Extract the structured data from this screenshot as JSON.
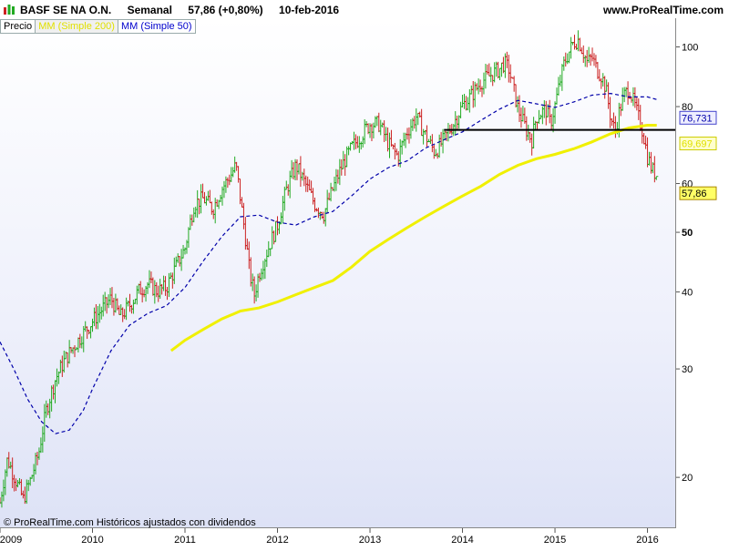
{
  "header": {
    "title": "BASF SE NA O.N.",
    "period": "Semanal",
    "quote": "57,86 (+0,80%)",
    "date": "10-feb-2016",
    "site": "www.ProRealTime.com"
  },
  "legend": {
    "price": "Precio",
    "ma200": "MM (Simple 200)",
    "ma50": "MM (Simple 50)"
  },
  "footer": "© ProRealTime.com  Históricos ajustados con dividendos",
  "colors": {
    "up": "#22aa22",
    "down": "#cc2222",
    "ma50": "#0000aa",
    "ma200": "#f0f000",
    "resistance": "#000000",
    "ma50_badge": "#eeeeff",
    "ma200_badge": "#ffffcc",
    "last_badge": "#ffff66"
  },
  "chart_data": {
    "type": "line",
    "scale": "log",
    "ylim": [
      15.5,
      104
    ],
    "xlim": [
      2009.0,
      2016.3
    ],
    "yticks": [
      {
        "value": 100,
        "label": "100"
      },
      {
        "value": 80,
        "label": "80"
      },
      {
        "value": 60,
        "label": "60"
      },
      {
        "value": 50,
        "label": "50"
      },
      {
        "value": 40,
        "label": "40"
      },
      {
        "value": 30,
        "label": "30"
      },
      {
        "value": 20,
        "label": "20"
      }
    ],
    "xticks": [
      {
        "value": 2009,
        "label": "2009"
      },
      {
        "value": 2010,
        "label": "2010"
      },
      {
        "value": 2011,
        "label": "2011"
      },
      {
        "value": 2012,
        "label": "2012"
      },
      {
        "value": 2013,
        "label": "2013"
      },
      {
        "value": 2014,
        "label": "2014"
      },
      {
        "value": 2015,
        "label": "2015"
      },
      {
        "value": 2016,
        "label": "2016"
      }
    ],
    "price_path": [
      [
        2009.0,
        17
      ],
      [
        2009.08,
        20
      ],
      [
        2009.17,
        18.5
      ],
      [
        2009.25,
        17.2
      ],
      [
        2009.33,
        18.5
      ],
      [
        2009.42,
        20.5
      ],
      [
        2009.5,
        24
      ],
      [
        2009.6,
        27
      ],
      [
        2009.7,
        29
      ],
      [
        2009.8,
        30.5
      ],
      [
        2009.9,
        32
      ],
      [
        2010.0,
        33.5
      ],
      [
        2010.1,
        35
      ],
      [
        2010.2,
        36.5
      ],
      [
        2010.3,
        34
      ],
      [
        2010.4,
        35.5
      ],
      [
        2010.5,
        37.5
      ],
      [
        2010.6,
        38.5
      ],
      [
        2010.7,
        37.5
      ],
      [
        2010.8,
        38
      ],
      [
        2010.9,
        41
      ],
      [
        2011.0,
        44
      ],
      [
        2011.1,
        52
      ],
      [
        2011.2,
        53
      ],
      [
        2011.3,
        51
      ],
      [
        2011.4,
        55
      ],
      [
        2011.5,
        58
      ],
      [
        2011.55,
        60
      ],
      [
        2011.62,
        50
      ],
      [
        2011.7,
        40
      ],
      [
        2011.75,
        37
      ],
      [
        2011.8,
        40
      ],
      [
        2011.9,
        44
      ],
      [
        2012.0,
        48
      ],
      [
        2012.1,
        55
      ],
      [
        2012.2,
        60
      ],
      [
        2012.3,
        56
      ],
      [
        2012.4,
        52
      ],
      [
        2012.5,
        50
      ],
      [
        2012.6,
        55
      ],
      [
        2012.7,
        60
      ],
      [
        2012.8,
        64
      ],
      [
        2012.9,
        67
      ],
      [
        2013.0,
        70
      ],
      [
        2013.1,
        70
      ],
      [
        2013.2,
        65
      ],
      [
        2013.3,
        62
      ],
      [
        2013.4,
        68
      ],
      [
        2013.5,
        72
      ],
      [
        2013.6,
        67
      ],
      [
        2013.7,
        63
      ],
      [
        2013.8,
        66
      ],
      [
        2013.9,
        70
      ],
      [
        2014.0,
        75
      ],
      [
        2014.1,
        78
      ],
      [
        2014.2,
        82
      ],
      [
        2014.3,
        84
      ],
      [
        2014.4,
        86
      ],
      [
        2014.45,
        88
      ],
      [
        2014.5,
        86
      ],
      [
        2014.55,
        80
      ],
      [
        2014.6,
        74
      ],
      [
        2014.7,
        68
      ],
      [
        2014.75,
        66
      ],
      [
        2014.8,
        72
      ],
      [
        2014.9,
        74
      ],
      [
        2014.95,
        70
      ],
      [
        2015.0,
        75
      ],
      [
        2015.1,
        88
      ],
      [
        2015.2,
        95
      ],
      [
        2015.25,
        96
      ],
      [
        2015.3,
        92
      ],
      [
        2015.35,
        88
      ],
      [
        2015.4,
        90
      ],
      [
        2015.45,
        86
      ],
      [
        2015.5,
        84
      ],
      [
        2015.55,
        80
      ],
      [
        2015.6,
        72
      ],
      [
        2015.65,
        68
      ],
      [
        2015.7,
        74
      ],
      [
        2015.75,
        78
      ],
      [
        2015.8,
        80
      ],
      [
        2015.85,
        76
      ],
      [
        2015.9,
        72
      ],
      [
        2015.95,
        68
      ],
      [
        2016.0,
        62
      ],
      [
        2016.05,
        59
      ],
      [
        2016.1,
        57.86
      ]
    ],
    "series": [
      {
        "name": "MM (Simple 200)",
        "points": [
          [
            2010.85,
            30
          ],
          [
            2011.0,
            31.2
          ],
          [
            2011.2,
            32.5
          ],
          [
            2011.4,
            33.8
          ],
          [
            2011.6,
            34.8
          ],
          [
            2011.8,
            35.2
          ],
          [
            2012.0,
            36.0
          ],
          [
            2012.2,
            37.0
          ],
          [
            2012.4,
            38.0
          ],
          [
            2012.6,
            39.0
          ],
          [
            2012.8,
            41.0
          ],
          [
            2013.0,
            43.5
          ],
          [
            2013.2,
            45.5
          ],
          [
            2013.4,
            47.5
          ],
          [
            2013.6,
            49.5
          ],
          [
            2013.8,
            51.5
          ],
          [
            2014.0,
            53.5
          ],
          [
            2014.2,
            55.5
          ],
          [
            2014.4,
            58.0
          ],
          [
            2014.6,
            60.0
          ],
          [
            2014.8,
            61.5
          ],
          [
            2015.0,
            62.5
          ],
          [
            2015.2,
            63.8
          ],
          [
            2015.4,
            65.5
          ],
          [
            2015.6,
            67.5
          ],
          [
            2015.8,
            69.0
          ],
          [
            2016.0,
            69.7
          ],
          [
            2016.1,
            69.7
          ]
        ]
      },
      {
        "name": "MM (Simple 50)",
        "points": [
          [
            2009.0,
            31
          ],
          [
            2009.15,
            28
          ],
          [
            2009.3,
            25
          ],
          [
            2009.45,
            23
          ],
          [
            2009.6,
            22
          ],
          [
            2009.75,
            22.3
          ],
          [
            2009.9,
            24
          ],
          [
            2010.0,
            26
          ],
          [
            2010.2,
            30
          ],
          [
            2010.4,
            33
          ],
          [
            2010.6,
            34.5
          ],
          [
            2010.8,
            35.5
          ],
          [
            2011.0,
            38
          ],
          [
            2011.2,
            42
          ],
          [
            2011.4,
            46
          ],
          [
            2011.6,
            49.5
          ],
          [
            2011.8,
            49.8
          ],
          [
            2012.0,
            48.5
          ],
          [
            2012.2,
            48
          ],
          [
            2012.4,
            49.5
          ],
          [
            2012.6,
            50.5
          ],
          [
            2012.8,
            53.5
          ],
          [
            2013.0,
            57
          ],
          [
            2013.2,
            59.5
          ],
          [
            2013.4,
            61
          ],
          [
            2013.6,
            64
          ],
          [
            2013.8,
            66
          ],
          [
            2014.0,
            68
          ],
          [
            2014.2,
            71
          ],
          [
            2014.4,
            74
          ],
          [
            2014.6,
            76.5
          ],
          [
            2014.8,
            75.5
          ],
          [
            2015.0,
            74.5
          ],
          [
            2015.2,
            76
          ],
          [
            2015.4,
            78
          ],
          [
            2015.6,
            78.5
          ],
          [
            2015.8,
            77.5
          ],
          [
            2016.0,
            77.5
          ],
          [
            2016.1,
            76.731
          ]
        ]
      }
    ],
    "resistance_line": {
      "x1": 2013.8,
      "x2": 2016.3,
      "y": 68.5
    },
    "last_values": {
      "ma50": "76,731",
      "ma200": "69,697",
      "price": "57,86"
    },
    "ma50_value": 76.731,
    "ma200_value": 69.697,
    "price_value": 57.86
  }
}
